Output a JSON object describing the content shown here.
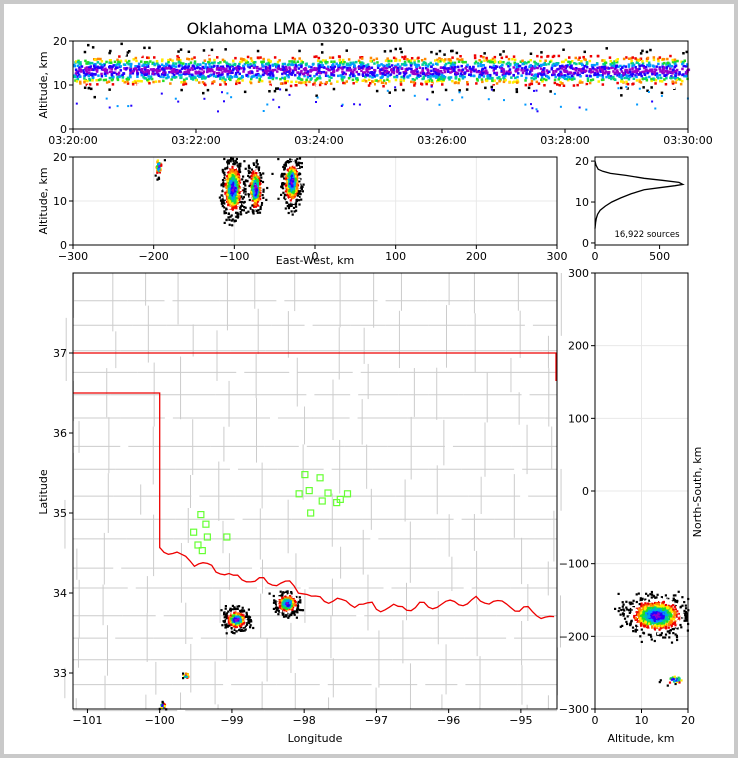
{
  "title": "Oklahoma LMA 0320-0330 UTC August 11, 2023",
  "source_count": "16,922 sources",
  "colors": {
    "density": [
      "#9900cc",
      "#2200ff",
      "#0099ff",
      "#00cc99",
      "#22dd22",
      "#ffee00",
      "#ff8800",
      "#ee0000",
      "#ffffff",
      "#000000"
    ],
    "state_line": "#ee0000",
    "county_line": "#cccccc",
    "station": "#66ff33"
  },
  "chart_data": [
    {
      "id": "time-height",
      "type": "heatmap",
      "ylabel": "Altitude, km",
      "xlabel": "",
      "x_ticks": [
        "03:20:00",
        "03:22:00",
        "03:24:00",
        "03:26:00",
        "03:28:00",
        "03:30:00"
      ],
      "x_range": [
        "03:20:00",
        "03:30:00"
      ],
      "y_ticks": [
        0,
        10,
        20
      ],
      "ylim": [
        0,
        20
      ],
      "band_km": [
        9,
        17
      ],
      "band_center_km": 13.5
    },
    {
      "id": "ew-height",
      "type": "heatmap",
      "xlabel": "East-West, km",
      "ylabel": "Altitude, km",
      "x_ticks": [
        -300,
        -200,
        -100,
        0,
        100,
        200,
        300
      ],
      "xlim": [
        -300,
        300
      ],
      "y_ticks": [
        0,
        10,
        20
      ],
      "ylim": [
        0,
        20
      ],
      "clusters": [
        {
          "x": -103,
          "y": 13,
          "sx": 6,
          "sy": 3.0
        },
        {
          "x": -30,
          "y": 14.5,
          "sx": 5,
          "sy": 2.5
        },
        {
          "x": -75,
          "y": 13,
          "sx": 4,
          "sy": 2.5
        },
        {
          "x": -195,
          "y": 18,
          "sx": 2,
          "sy": 1.2
        }
      ]
    },
    {
      "id": "altitude-histogram",
      "type": "line",
      "xlabel": "",
      "ylabel": "",
      "x_ticks": [
        0,
        500
      ],
      "xlim": [
        0,
        720
      ],
      "y_ticks": [
        0,
        10,
        20
      ],
      "ylim": [
        -0.5,
        21
      ],
      "x": [
        0,
        5,
        10,
        20,
        40,
        80,
        130,
        200,
        280,
        380,
        500,
        620,
        680,
        650,
        520,
        380,
        240,
        120,
        60,
        25,
        8,
        0
      ],
      "y": [
        3.5,
        5,
        6,
        7,
        8,
        9,
        10,
        11,
        12,
        13,
        13.5,
        14,
        14.3,
        14.8,
        15.3,
        15.8,
        16.5,
        17,
        17.5,
        18,
        19,
        20
      ]
    },
    {
      "id": "plan-view",
      "type": "scatter",
      "xlabel": "Longitude",
      "ylabel": "Latitude",
      "x_ticks": [
        -101,
        -100,
        -99,
        -98,
        -97,
        -96,
        -95
      ],
      "xlim": [
        -101.2,
        -94.5
      ],
      "y_ticks": [
        33,
        34,
        35,
        36,
        37
      ],
      "ylim": [
        32.55,
        38.0
      ],
      "clusters": [
        {
          "lon": -98.95,
          "lat": 33.68,
          "s": 0.06
        },
        {
          "lon": -98.25,
          "lat": 33.88,
          "s": 0.06
        },
        {
          "lon": -99.65,
          "lat": 32.98,
          "s": 0.02
        },
        {
          "lon": -99.97,
          "lat": 32.6,
          "s": 0.02
        }
      ],
      "stations": [
        {
          "lon": -97.99,
          "lat": 35.48
        },
        {
          "lon": -97.78,
          "lat": 35.44
        },
        {
          "lon": -97.93,
          "lat": 35.28
        },
        {
          "lon": -98.07,
          "lat": 35.24
        },
        {
          "lon": -97.67,
          "lat": 35.25
        },
        {
          "lon": -97.4,
          "lat": 35.24
        },
        {
          "lon": -97.5,
          "lat": 35.17
        },
        {
          "lon": -97.75,
          "lat": 35.15
        },
        {
          "lon": -97.55,
          "lat": 35.13
        },
        {
          "lon": -97.91,
          "lat": 35.0
        },
        {
          "lon": -99.43,
          "lat": 34.98
        },
        {
          "lon": -99.36,
          "lat": 34.86
        },
        {
          "lon": -99.53,
          "lat": 34.76
        },
        {
          "lon": -99.34,
          "lat": 34.7
        },
        {
          "lon": -99.07,
          "lat": 34.7
        },
        {
          "lon": -99.47,
          "lat": 34.6
        },
        {
          "lon": -99.41,
          "lat": 34.53
        }
      ]
    },
    {
      "id": "ns-height",
      "type": "heatmap",
      "xlabel": "Altitude, km",
      "ylabel": "North-South, km",
      "x_ticks": [
        0,
        10,
        20
      ],
      "xlim": [
        0,
        20
      ],
      "y_ticks": [
        -300,
        -200,
        -100,
        0,
        100,
        200,
        300
      ],
      "ylim": [
        -300,
        300
      ],
      "clusters": [
        {
          "x": 13,
          "y": -170,
          "sx": 3.0,
          "sy": 12
        },
        {
          "x": 17,
          "y": -258,
          "sx": 1.2,
          "sy": 3
        }
      ]
    }
  ]
}
